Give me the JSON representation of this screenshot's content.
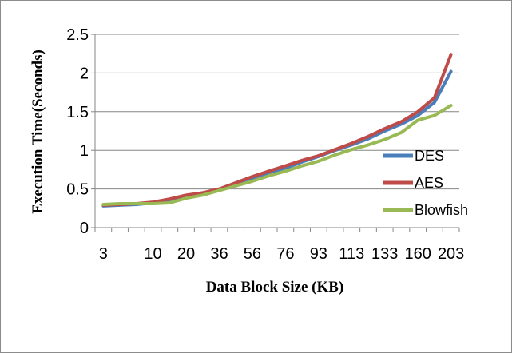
{
  "chart_data": {
    "type": "line",
    "title": "",
    "xlabel": "Data Block Size (KB)",
    "ylabel": "Execution Time(Seconds)",
    "ylim": [
      0,
      2.5
    ],
    "yticks": [
      "0",
      "0.5",
      "1",
      "1.5",
      "2",
      "2.5"
    ],
    "x": [
      3,
      5,
      8,
      10,
      15,
      20,
      28,
      36,
      47,
      56,
      64,
      76,
      85,
      93,
      103,
      113,
      124,
      133,
      143,
      160,
      185,
      203
    ],
    "x_tick_labels": [
      "3",
      "10",
      "20",
      "36",
      "56",
      "76",
      "93",
      "113",
      "133",
      "160",
      "203"
    ],
    "x_tick_indices": [
      0,
      3,
      5,
      7,
      9,
      11,
      13,
      15,
      17,
      19,
      21
    ],
    "grid": "horizontal",
    "legend_position": "right",
    "series": [
      {
        "name": "DES",
        "color": "#4a7ebb",
        "values": [
          0.28,
          0.29,
          0.3,
          0.32,
          0.36,
          0.4,
          0.44,
          0.49,
          0.56,
          0.63,
          0.7,
          0.77,
          0.85,
          0.92,
          1.0,
          1.07,
          1.15,
          1.25,
          1.34,
          1.45,
          1.62,
          2.02
        ]
      },
      {
        "name": "AES",
        "color": "#be4b48",
        "values": [
          0.29,
          0.3,
          0.31,
          0.33,
          0.37,
          0.42,
          0.45,
          0.5,
          0.58,
          0.66,
          0.73,
          0.8,
          0.87,
          0.93,
          1.01,
          1.09,
          1.18,
          1.28,
          1.37,
          1.5,
          1.68,
          2.24
        ]
      },
      {
        "name": "Blowfish",
        "color": "#98b954",
        "values": [
          0.3,
          0.31,
          0.31,
          0.31,
          0.32,
          0.38,
          0.42,
          0.48,
          0.54,
          0.6,
          0.67,
          0.73,
          0.8,
          0.86,
          0.94,
          1.01,
          1.07,
          1.14,
          1.23,
          1.39,
          1.45,
          1.58
        ]
      }
    ]
  }
}
